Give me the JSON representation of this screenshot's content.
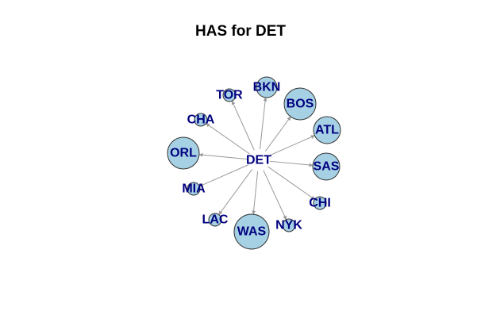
{
  "title": "HAS for DET",
  "colors": {
    "node_fill": "#a6d1e4",
    "node_stroke": "#333333",
    "edge": "#999999",
    "label": "#00007f"
  },
  "graph": {
    "center": "DET",
    "nodes": [
      {
        "id": "DET",
        "label": "DET",
        "size": 0
      },
      {
        "id": "BKN",
        "label": "BKN",
        "size": 2
      },
      {
        "id": "BOS",
        "label": "BOS",
        "size": 4
      },
      {
        "id": "ATL",
        "label": "ATL",
        "size": 3
      },
      {
        "id": "SAS",
        "label": "SAS",
        "size": 3
      },
      {
        "id": "CHI",
        "label": "CHI",
        "size": 1
      },
      {
        "id": "NYK",
        "label": "NYK",
        "size": 1
      },
      {
        "id": "WAS",
        "label": "WAS",
        "size": 5
      },
      {
        "id": "LAC",
        "label": "LAC",
        "size": 1
      },
      {
        "id": "MIA",
        "label": "MIA",
        "size": 1
      },
      {
        "id": "ORL",
        "label": "ORL",
        "size": 4
      },
      {
        "id": "CHA",
        "label": "CHA",
        "size": 1
      },
      {
        "id": "TOR",
        "label": "TOR",
        "size": 1
      }
    ],
    "edges": [
      {
        "from": "DET",
        "to": "BKN"
      },
      {
        "from": "DET",
        "to": "BOS"
      },
      {
        "from": "DET",
        "to": "ATL"
      },
      {
        "from": "DET",
        "to": "SAS"
      },
      {
        "from": "DET",
        "to": "CHI"
      },
      {
        "from": "DET",
        "to": "NYK"
      },
      {
        "from": "DET",
        "to": "WAS"
      },
      {
        "from": "DET",
        "to": "LAC"
      },
      {
        "from": "DET",
        "to": "MIA"
      },
      {
        "from": "DET",
        "to": "ORL"
      },
      {
        "from": "DET",
        "to": "CHA"
      },
      {
        "from": "DET",
        "to": "TOR"
      }
    ]
  }
}
